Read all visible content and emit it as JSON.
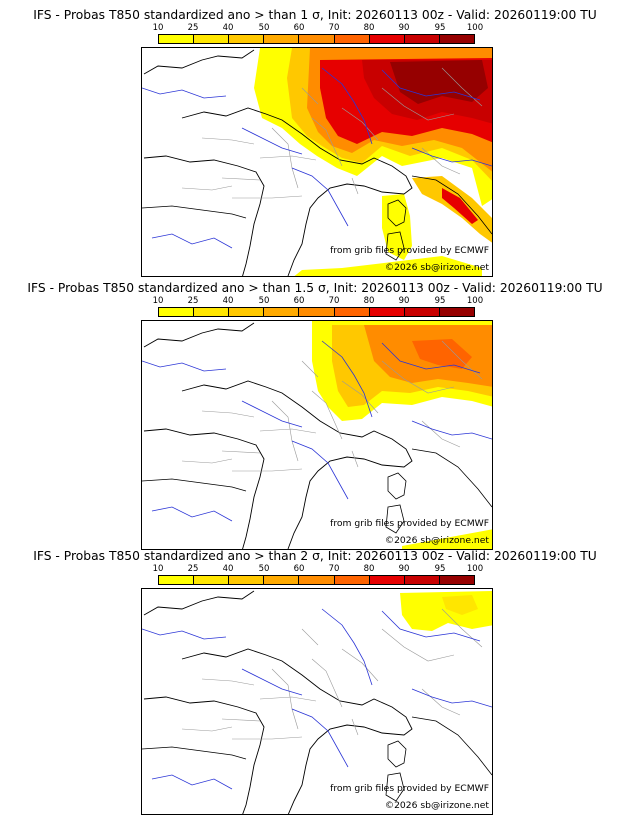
{
  "panels": [
    {
      "title": "IFS - Probas T850  standardized ano > than 1 σ, Init: 20260113 00z - Valid: 20260119:00 TU",
      "credit_source": "from grib files provided by ECMWF",
      "credit_copyright": "©2026 sb@irizone.net"
    },
    {
      "title": "IFS - Probas T850  standardized ano > than 1.5 σ, Init: 20260113 00z - Valid: 20260119:00 TU",
      "credit_source": "from grib files provided by ECMWF",
      "credit_copyright": "©2026 sb@irizone.net"
    },
    {
      "title": "IFS - Probas T850  standardized ano > than 2 σ, Init: 20260113 00z - Valid: 20260119:00 TU",
      "credit_source": "from grib files provided by ECMWF",
      "credit_copyright": "©2026 sb@irizone.net"
    }
  ],
  "color_scale": {
    "ticks": [
      "10",
      "25",
      "40",
      "50",
      "60",
      "70",
      "80",
      "90",
      "95",
      "100"
    ],
    "colors": [
      "#ffff00",
      "#ffe600",
      "#ffc800",
      "#ffaa00",
      "#ff8c00",
      "#ff6400",
      "#e60000",
      "#c80000",
      "#960000",
      "#640000"
    ]
  },
  "map_colors": {
    "coast": "#000000",
    "rivers": "#2b35d6",
    "borders": "#9a9a9a"
  }
}
